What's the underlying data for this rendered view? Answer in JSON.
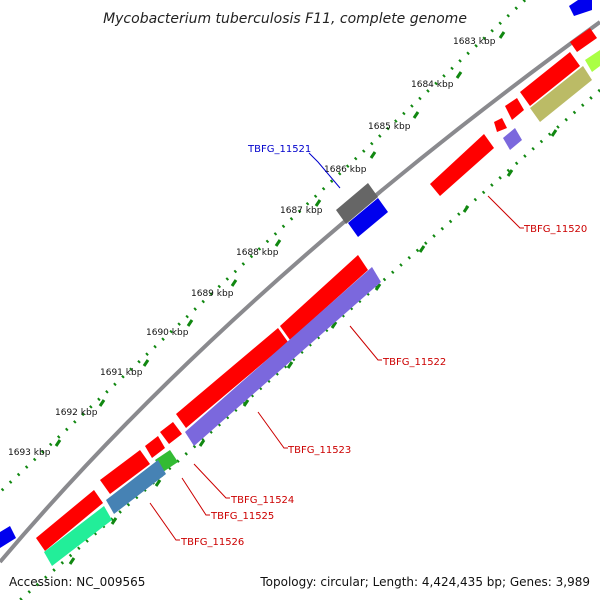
{
  "title": "Mycobacterium tuberculosis F11, complete genome",
  "footer": {
    "accession": "Accession: NC_009565",
    "topology": "Topology: circular; Length: 4,424,435 bp; Genes: 3,989"
  },
  "ticks": [
    {
      "label": "1683 kbp"
    },
    {
      "label": "1684 kbp"
    },
    {
      "label": "1685 kbp"
    },
    {
      "label": "1686 kbp"
    },
    {
      "label": "1687 kbp"
    },
    {
      "label": "1688 kbp"
    },
    {
      "label": "1689 kbp"
    },
    {
      "label": "1690 kbp"
    },
    {
      "label": "1691 kbp"
    },
    {
      "label": "1692 kbp"
    },
    {
      "label": "1693 kbp"
    }
  ],
  "gene_labels": [
    {
      "text": "TBFG_11521",
      "color": "#0000cc"
    },
    {
      "text": "TBFG_11520",
      "color": "#cc0000"
    },
    {
      "text": "TBFG_11522",
      "color": "#cc0000"
    },
    {
      "text": "TBFG_11523",
      "color": "#cc0000"
    },
    {
      "text": "TBFG_11524",
      "color": "#cc0000"
    },
    {
      "text": "TBFG_11525",
      "color": "#cc0000"
    },
    {
      "text": "TBFG_11526",
      "color": "#cc0000"
    }
  ],
  "colors": {
    "backbone": "#8a8a8e",
    "tick_dots": "#118811",
    "cds_red": "#ff0000",
    "cds_blue": "#0000ee",
    "cds_gray": "#666666",
    "cds_purple": "#7b68dd",
    "cds_steelblue": "#4682b4",
    "cds_green": "#33bb33",
    "cds_aqua": "#22ee99",
    "cds_olive": "#bbbb66",
    "cds_lime": "#aaff44"
  }
}
